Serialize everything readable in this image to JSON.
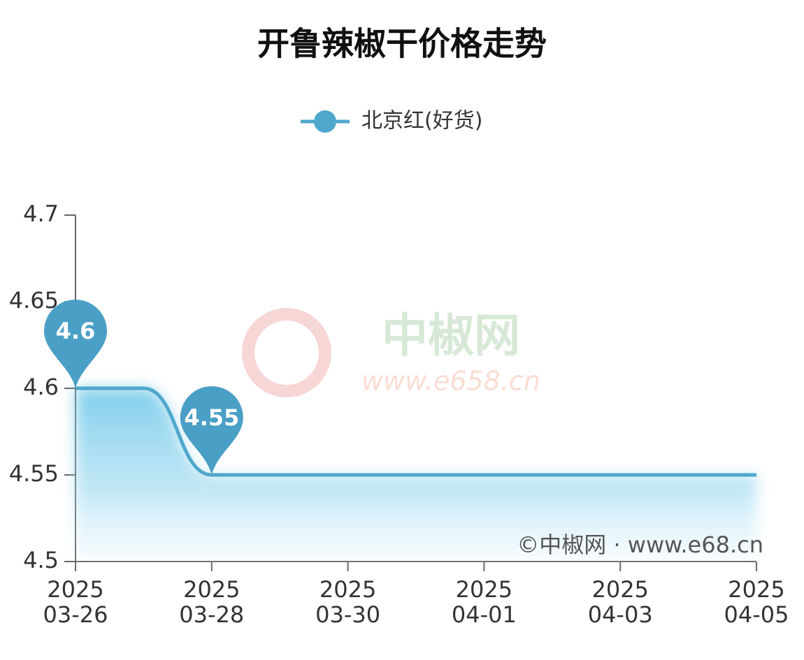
{
  "chart_data": {
    "type": "line",
    "title": "开鲁辣椒干价格走势",
    "watermark": [
      "中椒网",
      "www.e658.cn"
    ],
    "credit": "©中椒网 · www.e68.cn",
    "x": [
      "2025-03-26",
      "2025-03-27",
      "2025-03-28",
      "2025-03-29",
      "2025-03-30",
      "2025-03-31",
      "2025-04-01",
      "2025-04-02",
      "2025-04-03",
      "2025-04-04",
      "2025-04-05"
    ],
    "series": [
      {
        "name": "北京红(好货)",
        "color": "#4fa7cc",
        "values": [
          4.6,
          4.6,
          4.55,
          4.55,
          4.55,
          4.55,
          4.55,
          4.55,
          4.55,
          4.55,
          4.55
        ],
        "value_labels": [
          "4.6",
          null,
          "4.55",
          null,
          null,
          null,
          null,
          null,
          null,
          null,
          null
        ]
      }
    ],
    "ylim": [
      4.5,
      4.7
    ],
    "yticks": [
      4.5,
      4.55,
      4.6,
      4.65,
      4.7
    ],
    "xticks": [
      {
        "value": "2025-03-26",
        "label": [
          "2025",
          "03-26"
        ]
      },
      {
        "value": "2025-03-28",
        "label": [
          "2025",
          "03-28"
        ]
      },
      {
        "value": "2025-03-30",
        "label": [
          "2025",
          "03-30"
        ]
      },
      {
        "value": "2025-04-01",
        "label": [
          "2025",
          "04-01"
        ]
      },
      {
        "value": "2025-04-03",
        "label": [
          "2025",
          "04-03"
        ]
      },
      {
        "value": "2025-04-05",
        "label": [
          "2025",
          "04-05"
        ]
      }
    ],
    "legend": "top"
  }
}
